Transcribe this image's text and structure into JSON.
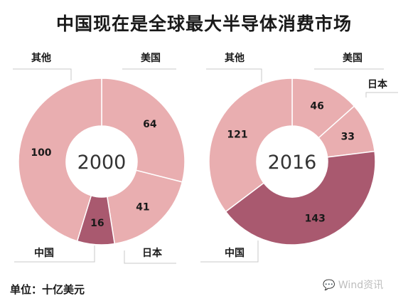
{
  "title": "中国现在是全球最大半导体消费市场",
  "unit_label": "单位：十亿美元",
  "watermark": "Wind资讯",
  "colors": {
    "light": "#e9aeb0",
    "dark": "#a9596f",
    "leader": "#c8c8c8",
    "center": "#ffffff"
  },
  "chart_data": [
    {
      "type": "pie",
      "center_label": "2000",
      "slices": [
        {
          "label": "美国",
          "value": 64,
          "color": "#e9aeb0"
        },
        {
          "label": "日本",
          "value": 41,
          "color": "#e9aeb0"
        },
        {
          "label": "中国",
          "value": 16,
          "color": "#a9596f"
        },
        {
          "label": "其他",
          "value": 100,
          "color": "#e9aeb0"
        }
      ]
    },
    {
      "type": "pie",
      "center_label": "2016",
      "slices": [
        {
          "label": "美国",
          "value": 46,
          "color": "#e9aeb0"
        },
        {
          "label": "日本",
          "value": 33,
          "color": "#e9aeb0"
        },
        {
          "label": "中国",
          "value": 143,
          "color": "#a9596f"
        },
        {
          "label": "其他",
          "value": 121,
          "color": "#e9aeb0"
        }
      ]
    }
  ]
}
